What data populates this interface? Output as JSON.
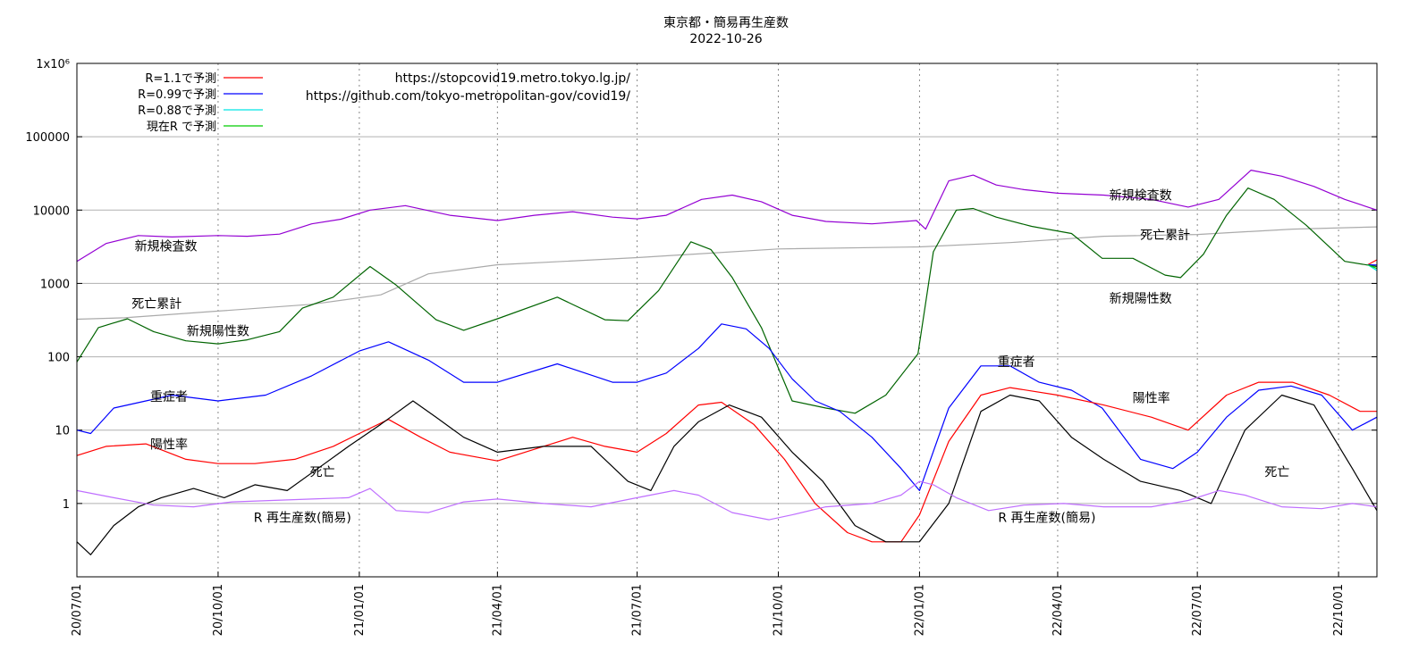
{
  "chart_data": {
    "type": "line",
    "title": "東京都・簡易再生産数",
    "subtitle": "2022-10-26",
    "y_scale": "log",
    "ylim": [
      0.1,
      1000000
    ],
    "y_ticks": [
      {
        "value": 1000000,
        "label": "1x10⁶"
      },
      {
        "value": 100000,
        "label": "100000"
      },
      {
        "value": 10000,
        "label": "10000"
      },
      {
        "value": 1000,
        "label": "1000"
      },
      {
        "value": 100,
        "label": "100"
      },
      {
        "value": 10,
        "label": "10"
      },
      {
        "value": 1,
        "label": "1"
      }
    ],
    "xlim": [
      "2020-07-01",
      "2022-10-26"
    ],
    "x_ticks": [
      {
        "date": "2020-07-01",
        "label": "20/07/01"
      },
      {
        "date": "2020-10-01",
        "label": "20/10/01"
      },
      {
        "date": "2021-01-01",
        "label": "21/01/01"
      },
      {
        "date": "2021-04-01",
        "label": "21/04/01"
      },
      {
        "date": "2021-07-01",
        "label": "21/07/01"
      },
      {
        "date": "2021-10-01",
        "label": "21/10/01"
      },
      {
        "date": "2022-01-01",
        "label": "22/01/01"
      },
      {
        "date": "2022-04-01",
        "label": "22/04/01"
      },
      {
        "date": "2022-07-01",
        "label": "22/07/01"
      },
      {
        "date": "2022-10-01",
        "label": "22/10/01"
      }
    ],
    "grid": true,
    "legend_position": "top-left",
    "urls": [
      "https://stopcovid19.metro.tokyo.lg.jp/",
      "https://github.com/tokyo-metropolitan-gov/covid19/"
    ],
    "legend": [
      {
        "label": "R=1.1で予測",
        "color": "#ff0000"
      },
      {
        "label": "R=0.99で予測",
        "color": "#0000ff"
      },
      {
        "label": "R=0.88で予測",
        "color": "#00e5e5"
      },
      {
        "label": "現在R で予測",
        "color": "#00cc00"
      }
    ],
    "series": [
      {
        "name": "新規検査数",
        "color": "#9400d3",
        "x": [
          "2020-07-01",
          "2020-07-20",
          "2020-08-10",
          "2020-09-01",
          "2020-10-01",
          "2020-10-20",
          "2020-11-10",
          "2020-12-01",
          "2020-12-20",
          "2021-01-08",
          "2021-01-31",
          "2021-03-01",
          "2021-04-01",
          "2021-04-25",
          "2021-05-20",
          "2021-06-15",
          "2021-07-01",
          "2021-07-20",
          "2021-08-12",
          "2021-09-01",
          "2021-09-20",
          "2021-10-10",
          "2021-11-01",
          "2021-12-01",
          "2021-12-30",
          "2022-01-05",
          "2022-01-20",
          "2022-02-05",
          "2022-02-20",
          "2022-03-10",
          "2022-04-01",
          "2022-05-01",
          "2022-06-01",
          "2022-06-25",
          "2022-07-15",
          "2022-08-05",
          "2022-08-25",
          "2022-09-15",
          "2022-10-05",
          "2022-10-26"
        ],
        "values": [
          2000,
          3500,
          4500,
          4300,
          4500,
          4400,
          4700,
          6500,
          7500,
          10000,
          11500,
          8500,
          7200,
          8500,
          9500,
          8000,
          7600,
          8500,
          14000,
          16000,
          13000,
          8500,
          7000,
          6500,
          7200,
          5500,
          25000,
          30000,
          22000,
          19000,
          17000,
          16000,
          14000,
          11000,
          14000,
          35000,
          29000,
          21000,
          14000,
          10000
        ]
      },
      {
        "name": "死亡累計",
        "color": "#aaaaaa",
        "x": [
          "2020-07-01",
          "2020-08-01",
          "2020-10-01",
          "2020-12-01",
          "2021-01-15",
          "2021-02-15",
          "2021-04-01",
          "2021-07-01",
          "2021-10-01",
          "2022-01-01",
          "2022-03-01",
          "2022-05-01",
          "2022-07-01",
          "2022-09-01",
          "2022-10-26"
        ],
        "values": [
          325,
          340,
          420,
          520,
          700,
          1350,
          1800,
          2250,
          2950,
          3150,
          3600,
          4400,
          4650,
          5500,
          5900
        ]
      },
      {
        "name": "新規陽性数",
        "color": "#006400",
        "x": [
          "2020-07-01",
          "2020-07-15",
          "2020-08-03",
          "2020-08-20",
          "2020-09-10",
          "2020-10-01",
          "2020-10-20",
          "2020-11-10",
          "2020-11-25",
          "2020-12-15",
          "2021-01-08",
          "2021-01-25",
          "2021-02-20",
          "2021-03-10",
          "2021-04-01",
          "2021-05-10",
          "2021-06-10",
          "2021-06-25",
          "2021-07-15",
          "2021-08-05",
          "2021-08-18",
          "2021-09-01",
          "2021-09-20",
          "2021-10-10",
          "2021-11-01",
          "2021-11-20",
          "2021-12-10",
          "2021-12-31",
          "2022-01-10",
          "2022-01-25",
          "2022-02-05",
          "2022-02-20",
          "2022-03-15",
          "2022-04-10",
          "2022-04-30",
          "2022-05-20",
          "2022-06-10",
          "2022-06-20",
          "2022-07-05",
          "2022-07-20",
          "2022-08-03",
          "2022-08-20",
          "2022-09-10",
          "2022-10-05",
          "2022-10-26"
        ],
        "values": [
          85,
          250,
          330,
          220,
          165,
          150,
          170,
          220,
          460,
          650,
          1700,
          950,
          320,
          230,
          330,
          650,
          320,
          310,
          800,
          3700,
          2900,
          1200,
          250,
          25,
          20,
          17,
          30,
          110,
          2700,
          10000,
          10500,
          8000,
          6000,
          4800,
          2200,
          2200,
          1300,
          1200,
          2500,
          8500,
          20000,
          14000,
          6200,
          2000,
          1700
        ]
      },
      {
        "name": "重症者",
        "color": "#0000ff",
        "x": [
          "2020-07-01",
          "2020-07-10",
          "2020-07-25",
          "2020-08-15",
          "2020-09-01",
          "2020-10-01",
          "2020-11-01",
          "2020-12-01",
          "2021-01-01",
          "2021-01-20",
          "2021-02-15",
          "2021-03-10",
          "2021-04-01",
          "2021-05-10",
          "2021-06-15",
          "2021-07-01",
          "2021-07-20",
          "2021-08-10",
          "2021-08-25",
          "2021-09-10",
          "2021-09-25",
          "2021-10-10",
          "2021-10-25",
          "2021-11-10",
          "2021-12-01",
          "2021-12-20",
          "2022-01-01",
          "2022-01-20",
          "2022-02-10",
          "2022-03-01",
          "2022-03-20",
          "2022-04-10",
          "2022-04-30",
          "2022-05-25",
          "2022-06-15",
          "2022-07-01",
          "2022-07-20",
          "2022-08-10",
          "2022-08-31",
          "2022-09-20",
          "2022-10-10",
          "2022-10-26"
        ],
        "values": [
          10,
          9,
          20,
          25,
          30,
          25,
          30,
          55,
          120,
          160,
          90,
          45,
          45,
          80,
          45,
          45,
          60,
          130,
          280,
          240,
          130,
          50,
          25,
          18,
          8,
          3,
          1.5,
          20,
          75,
          75,
          45,
          35,
          20,
          4,
          3,
          5,
          15,
          35,
          40,
          30,
          10,
          15
        ]
      },
      {
        "name": "陽性率",
        "color": "#ff0000",
        "x": [
          "2020-07-01",
          "2020-07-20",
          "2020-08-15",
          "2020-09-10",
          "2020-10-01",
          "2020-10-25",
          "2020-11-20",
          "2020-12-15",
          "2021-01-01",
          "2021-01-20",
          "2021-02-10",
          "2021-03-01",
          "2021-04-01",
          "2021-05-01",
          "2021-05-20",
          "2021-06-10",
          "2021-07-01",
          "2021-07-20",
          "2021-08-10",
          "2021-08-25",
          "2021-09-15",
          "2021-10-05",
          "2021-10-25",
          "2021-11-15",
          "2021-12-01",
          "2021-12-20",
          "2022-01-01",
          "2022-01-20",
          "2022-02-10",
          "2022-03-01",
          "2022-04-01",
          "2022-05-01",
          "2022-06-01",
          "2022-06-25",
          "2022-07-20",
          "2022-08-10",
          "2022-09-01",
          "2022-09-25",
          "2022-10-15",
          "2022-10-26"
        ],
        "values": [
          4.5,
          6,
          6.5,
          4,
          3.5,
          3.5,
          4,
          6,
          9,
          14,
          8,
          5,
          3.8,
          6,
          8,
          6,
          5,
          9,
          22,
          24,
          12,
          4,
          1,
          0.4,
          0.3,
          0.3,
          0.7,
          7,
          30,
          38,
          30,
          22,
          15,
          10,
          30,
          45,
          45,
          30,
          18,
          18
        ]
      },
      {
        "name": "死亡",
        "color": "#000000",
        "x": [
          "2020-07-01",
          "2020-07-10",
          "2020-07-25",
          "2020-08-10",
          "2020-08-25",
          "2020-09-15",
          "2020-10-05",
          "2020-10-25",
          "2020-11-15",
          "2020-12-05",
          "2020-12-25",
          "2021-01-15",
          "2021-02-05",
          "2021-02-20",
          "2021-03-10",
          "2021-04-01",
          "2021-05-01",
          "2021-06-01",
          "2021-06-25",
          "2021-07-10",
          "2021-07-25",
          "2021-08-10",
          "2021-08-30",
          "2021-09-20",
          "2021-10-10",
          "2021-10-30",
          "2021-11-20",
          "2021-12-10",
          "2022-01-01",
          "2022-01-20",
          "2022-02-10",
          "2022-03-01",
          "2022-03-20",
          "2022-04-10",
          "2022-05-01",
          "2022-05-25",
          "2022-06-20",
          "2022-07-10",
          "2022-08-01",
          "2022-08-25",
          "2022-09-15",
          "2022-10-10",
          "2022-10-26"
        ],
        "values": [
          0.3,
          0.2,
          0.5,
          0.9,
          1.2,
          1.6,
          1.2,
          1.8,
          1.5,
          3,
          6,
          12,
          25,
          15,
          8,
          5,
          6,
          6,
          2,
          1.5,
          6,
          13,
          22,
          15,
          5,
          2,
          0.5,
          0.3,
          0.3,
          1,
          18,
          30,
          25,
          8,
          4,
          2,
          1.5,
          1,
          10,
          30,
          22,
          3,
          0.8
        ]
      },
      {
        "name": "R 再生産数(簡易)",
        "color": "#bf6fff",
        "x": [
          "2020-07-01",
          "2020-07-25",
          "2020-08-20",
          "2020-09-15",
          "2020-10-10",
          "2020-11-05",
          "2020-12-01",
          "2020-12-25",
          "2021-01-08",
          "2021-01-25",
          "2021-02-15",
          "2021-03-10",
          "2021-04-01",
          "2021-05-01",
          "2021-06-01",
          "2021-07-01",
          "2021-07-25",
          "2021-08-10",
          "2021-09-01",
          "2021-09-25",
          "2021-10-10",
          "2021-11-01",
          "2021-12-01",
          "2021-12-20",
          "2022-01-01",
          "2022-01-10",
          "2022-01-25",
          "2022-02-15",
          "2022-03-10",
          "2022-04-05",
          "2022-05-01",
          "2022-06-01",
          "2022-06-25",
          "2022-07-15",
          "2022-08-01",
          "2022-08-25",
          "2022-09-20",
          "2022-10-10",
          "2022-10-26"
        ],
        "values": [
          1.5,
          1.2,
          0.95,
          0.9,
          1.05,
          1.1,
          1.15,
          1.2,
          1.6,
          0.8,
          0.75,
          1.05,
          1.15,
          1.0,
          0.9,
          1.2,
          1.5,
          1.3,
          0.75,
          0.6,
          0.7,
          0.9,
          1.0,
          1.3,
          2.0,
          1.8,
          1.2,
          0.8,
          0.95,
          1.0,
          0.9,
          0.9,
          1.1,
          1.5,
          1.3,
          0.9,
          0.85,
          1.0,
          0.9
        ]
      },
      {
        "name": "R=1.1で予測",
        "color": "#ff0000",
        "x": [
          "2022-10-20",
          "2022-10-26"
        ],
        "values": [
          1800,
          2100
        ]
      },
      {
        "name": "R=0.99で予測",
        "color": "#0000ff",
        "x": [
          "2022-10-20",
          "2022-10-26"
        ],
        "values": [
          1800,
          1780
        ]
      },
      {
        "name": "R=0.88で予測",
        "color": "#00e5e5",
        "x": [
          "2022-10-20",
          "2022-10-26"
        ],
        "values": [
          1800,
          1500
        ]
      },
      {
        "name": "現在R で予測",
        "color": "#00cc00",
        "x": [
          "2022-10-20",
          "2022-10-26"
        ],
        "values": [
          1800,
          1600
        ]
      }
    ],
    "annotations": [
      {
        "text": "新規検査数",
        "x": "2020-08-28",
        "y": 2800
      },
      {
        "text": "死亡累計",
        "x": "2020-08-22",
        "y": 460
      },
      {
        "text": "新規陽性数",
        "x": "2020-10-01",
        "y": 195
      },
      {
        "text": "重症者",
        "x": "2020-08-30",
        "y": 25
      },
      {
        "text": "陽性率",
        "x": "2020-08-30",
        "y": 5.6
      },
      {
        "text": "死亡",
        "x": "2020-12-08",
        "y": 2.35
      },
      {
        "text": "R 再生産数(簡易)",
        "x": "2020-11-25",
        "y": 0.56
      },
      {
        "text": "新規検査数",
        "x": "2022-05-25",
        "y": 14000
      },
      {
        "text": "死亡累計",
        "x": "2022-06-10",
        "y": 4000
      },
      {
        "text": "新規陽性数",
        "x": "2022-05-25",
        "y": 550
      },
      {
        "text": "重症者",
        "x": "2022-03-05",
        "y": 75
      },
      {
        "text": "陽性率",
        "x": "2022-06-01",
        "y": 24
      },
      {
        "text": "死亡",
        "x": "2022-08-22",
        "y": 2.35
      },
      {
        "text": "R 再生産数(簡易)",
        "x": "2022-03-25",
        "y": 0.56
      }
    ]
  }
}
